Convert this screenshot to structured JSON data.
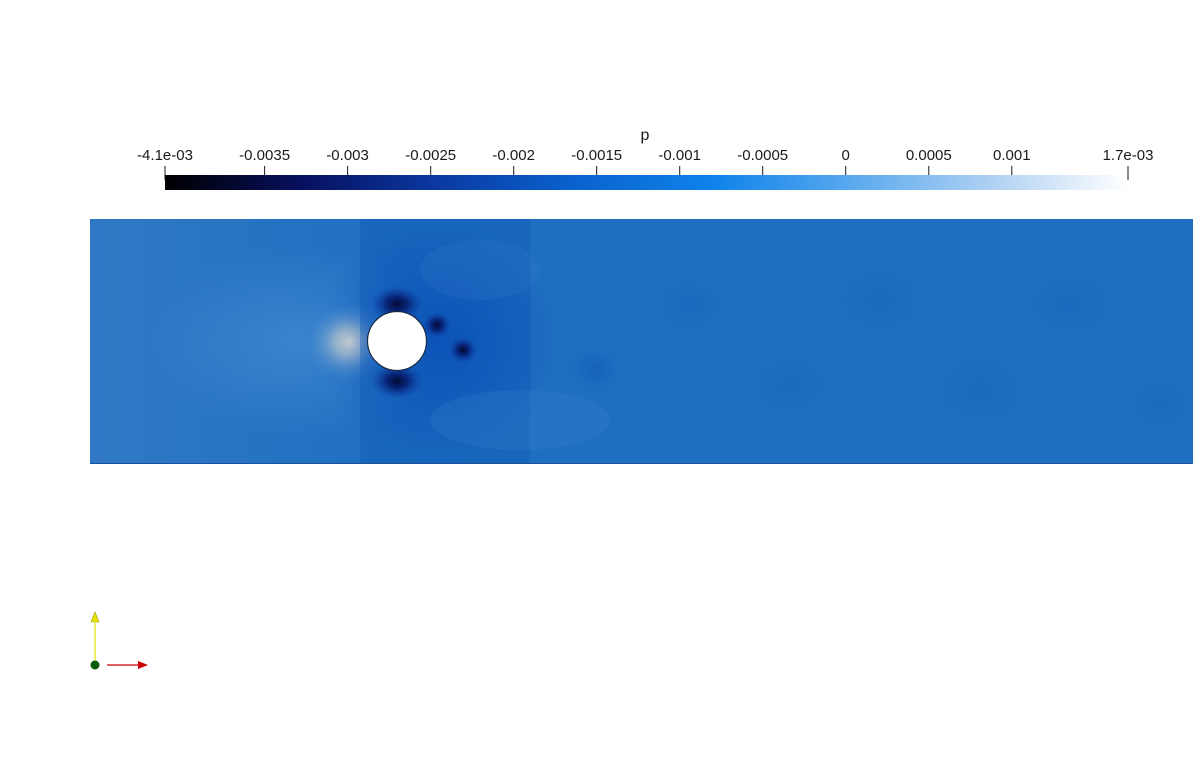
{
  "colorbar": {
    "title": "p",
    "min_label": "-4.1e-03",
    "max_label": "1.7e-03",
    "range": [
      -0.0041,
      0.0017
    ],
    "ticks": [
      {
        "value": -0.0035,
        "label": "-0.0035"
      },
      {
        "value": -0.003,
        "label": "-0.003"
      },
      {
        "value": -0.0025,
        "label": "-0.0025"
      },
      {
        "value": -0.002,
        "label": "-0.002"
      },
      {
        "value": -0.0015,
        "label": "-0.0015"
      },
      {
        "value": -0.001,
        "label": "-0.001"
      },
      {
        "value": -0.0005,
        "label": "-0.0005"
      },
      {
        "value": 0,
        "label": "0"
      },
      {
        "value": 0.0005,
        "label": "0.0005"
      },
      {
        "value": 0.001,
        "label": "0.001"
      }
    ],
    "colormap": [
      "#000000",
      "#07105f",
      "#0b3aa3",
      "#0a63cf",
      "#0f83ea",
      "#5aa9ee",
      "#aed0f2",
      "#ffffff"
    ]
  },
  "field": {
    "background_color": "#1f6fc1",
    "obstacle_color": "#ffffff",
    "high_pressure_color": "#f3ead0",
    "low_pressure_color": "#020a33"
  },
  "orientation_axes": {
    "y_axis_color": "#e6e600",
    "x_axis_color": "#cc0000",
    "origin_color": "#0a5a0a"
  }
}
